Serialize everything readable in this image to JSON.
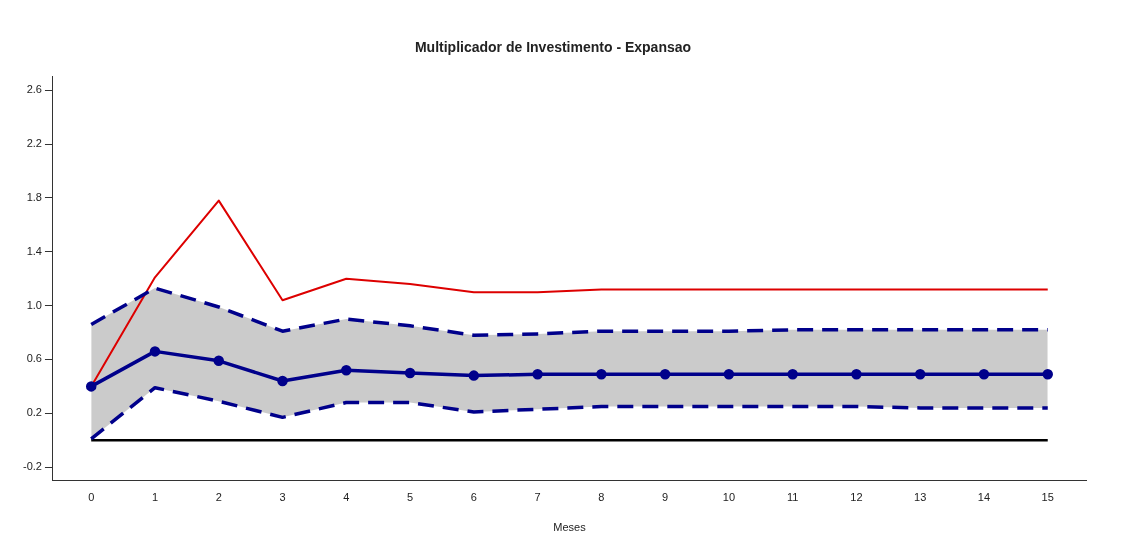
{
  "chart_data": {
    "type": "line",
    "title": "Multiplicador de Investimento - Expansao",
    "xlabel": "Meses",
    "x": [
      0,
      1,
      2,
      3,
      4,
      5,
      6,
      7,
      8,
      9,
      10,
      11,
      12,
      13,
      14,
      15
    ],
    "series": [
      {
        "color": "#00008b",
        "marker": "none",
        "line_style": "dashed",
        "values": [
          0.01,
          0.39,
          0.29,
          0.17,
          0.28,
          0.28,
          0.21,
          0.23,
          0.25,
          0.25,
          0.25,
          0.25,
          0.25,
          0.24,
          0.24,
          0.24
        ]
      },
      {
        "color": "#00008b",
        "marker": "none",
        "line_style": "dashed",
        "values": [
          0.86,
          1.13,
          0.99,
          0.81,
          0.9,
          0.85,
          0.78,
          0.79,
          0.81,
          0.81,
          0.81,
          0.82,
          0.82,
          0.82,
          0.82,
          0.82
        ]
      },
      {
        "color": "#00008b",
        "marker": "circle",
        "line_style": "solid",
        "values": [
          0.4,
          0.66,
          0.59,
          0.44,
          0.52,
          0.5,
          0.48,
          0.49,
          0.49,
          0.49,
          0.49,
          0.49,
          0.49,
          0.49,
          0.49,
          0.49
        ],
        "lower": [
          0.01,
          0.39,
          0.29,
          0.17,
          0.28,
          0.28,
          0.21,
          0.23,
          0.25,
          0.25,
          0.25,
          0.25,
          0.25,
          0.24,
          0.24,
          0.24
        ],
        "upper": [
          0.86,
          1.13,
          0.99,
          0.81,
          0.9,
          0.85,
          0.78,
          0.79,
          0.81,
          0.81,
          0.81,
          0.82,
          0.82,
          0.82,
          0.82,
          0.82
        ]
      },
      {
        "color": "#dd0000",
        "marker": "none",
        "line_style": "solid",
        "values": [
          0.4,
          1.21,
          1.78,
          1.04,
          1.2,
          1.16,
          1.1,
          1.1,
          1.12,
          1.12,
          1.12,
          1.12,
          1.12,
          1.12,
          1.12,
          1.12
        ]
      }
    ],
    "xlim": [
      -0.6,
      15.6
    ],
    "xticks": [
      0,
      1,
      2,
      3,
      4,
      5,
      6,
      7,
      8,
      9,
      10,
      11,
      12,
      13,
      14,
      15
    ],
    "ylim": [
      -0.3,
      2.7
    ],
    "yticks": [
      -0.2,
      0.2,
      0.6,
      {
        "value": 1,
        "label": "1.0"
      },
      1.4,
      1.8,
      2.2,
      2.6
    ],
    "ref_lines": [
      {
        "axis": "y",
        "value": 0,
        "color": "#000000",
        "line_style": "solid"
      }
    ],
    "grid": false,
    "legend": false
  }
}
